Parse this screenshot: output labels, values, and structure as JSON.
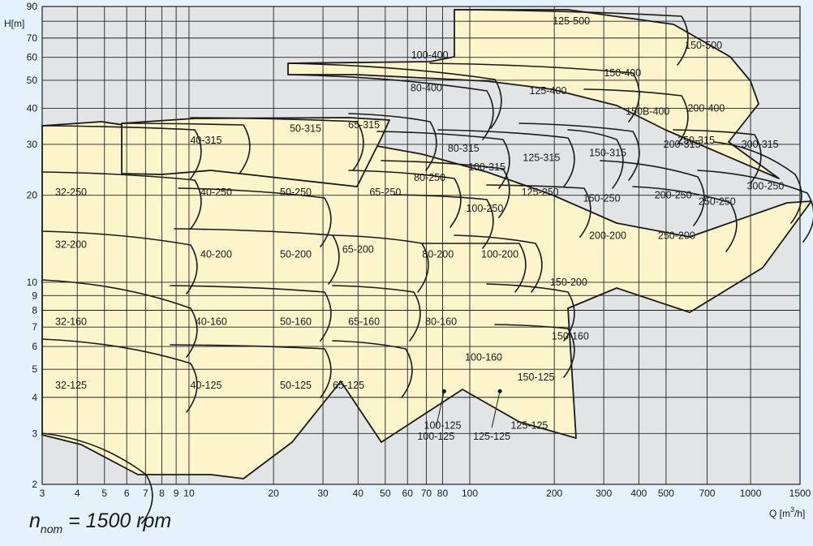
{
  "chart_data": {
    "type": "pump-performance-chart",
    "scale": "log-log",
    "y_axis_label": "H[m]",
    "x_axis_label_text": "Q [m",
    "x_axis_label_sup": "3",
    "x_axis_label_tail": "/h]",
    "y_ticks": [
      2,
      3,
      4,
      5,
      6,
      7,
      8,
      9,
      10,
      20,
      30,
      40,
      50,
      60,
      70,
      90
    ],
    "x_ticks": [
      3,
      4,
      5,
      6,
      7,
      8,
      9,
      10,
      20,
      30,
      40,
      50,
      60,
      70,
      80,
      100,
      200,
      300,
      400,
      500,
      700,
      1000,
      1500
    ],
    "xlim": [
      3,
      1500
    ],
    "ylim": [
      2,
      90
    ],
    "grid": true,
    "pumps": [
      {
        "label": "32-125",
        "q": 3.8,
        "h": 4.4
      },
      {
        "label": "32-160",
        "q": 3.8,
        "h": 7.3
      },
      {
        "label": "32-200",
        "q": 3.8,
        "h": 13.5
      },
      {
        "label": "32-250",
        "q": 3.8,
        "h": 20.5
      },
      {
        "label": "40-125",
        "q": 11.5,
        "h": 4.4
      },
      {
        "label": "40-160",
        "q": 12,
        "h": 7.3
      },
      {
        "label": "40-200",
        "q": 12.5,
        "h": 12.5
      },
      {
        "label": "40-250",
        "q": 12.5,
        "h": 20.5
      },
      {
        "label": "40-315",
        "q": 11.5,
        "h": 31
      },
      {
        "label": "50-125",
        "q": 24,
        "h": 4.4
      },
      {
        "label": "50-160",
        "q": 24,
        "h": 7.3
      },
      {
        "label": "50-200",
        "q": 24,
        "h": 12.5
      },
      {
        "label": "50-250",
        "q": 24,
        "h": 20.5
      },
      {
        "label": "50-315",
        "q": 26,
        "h": 34
      },
      {
        "label": "65-125",
        "q": 37,
        "h": 4.4
      },
      {
        "label": "65-160",
        "q": 42,
        "h": 7.3
      },
      {
        "label": "65-200",
        "q": 40,
        "h": 13
      },
      {
        "label": "65-250",
        "q": 50,
        "h": 20.5
      },
      {
        "label": "65-315",
        "q": 42,
        "h": 35
      },
      {
        "label": "80-160",
        "q": 79,
        "h": 7.3
      },
      {
        "label": "80-200",
        "q": 77,
        "h": 12.5
      },
      {
        "label": "80-250",
        "q": 72,
        "h": 23
      },
      {
        "label": "80-315",
        "q": 95,
        "h": 29
      },
      {
        "label": "80-400",
        "q": 70,
        "h": 47
      },
      {
        "label": "100-125",
        "q": 80,
        "h": 3.2
      },
      {
        "label": "100-160",
        "q": 112,
        "h": 5.5
      },
      {
        "label": "100-200",
        "q": 128,
        "h": 12.5
      },
      {
        "label": "100-250",
        "q": 113,
        "h": 18
      },
      {
        "label": "100-315",
        "q": 115,
        "h": 25
      },
      {
        "label": "100-400",
        "q": 72,
        "h": 61
      },
      {
        "label": "125-125",
        "q": 163,
        "h": 3.2
      },
      {
        "label": "125-250",
        "q": 178,
        "h": 20.5
      },
      {
        "label": "125-315",
        "q": 180,
        "h": 27
      },
      {
        "label": "125-400",
        "q": 190,
        "h": 46
      },
      {
        "label": "125-500",
        "q": 230,
        "h": 80
      },
      {
        "label": "150-125",
        "q": 172,
        "h": 4.7
      },
      {
        "label": "150-160",
        "q": 228,
        "h": 6.5
      },
      {
        "label": "150-200",
        "q": 225,
        "h": 10
      },
      {
        "label": "150-250",
        "q": 295,
        "h": 19.5
      },
      {
        "label": "150-315",
        "q": 310,
        "h": 28
      },
      {
        "label": "150-400",
        "q": 350,
        "h": 53
      },
      {
        "label": "150-500",
        "q": 680,
        "h": 66
      },
      {
        "label": "150B-400",
        "q": 430,
        "h": 39
      },
      {
        "label": "200-200",
        "q": 310,
        "h": 14.5
      },
      {
        "label": "200-250",
        "q": 530,
        "h": 20
      },
      {
        "label": "200-315",
        "q": 570,
        "h": 30
      },
      {
        "label": "200-400",
        "q": 695,
        "h": 40
      },
      {
        "label": "250-200",
        "q": 545,
        "h": 14.5
      },
      {
        "label": "250-250",
        "q": 760,
        "h": 19
      },
      {
        "label": "250-315",
        "q": 640,
        "h": 31
      },
      {
        "label": "300-250",
        "q": 1130,
        "h": 21.5
      },
      {
        "label": "300-315",
        "q": 1080,
        "h": 30
      }
    ],
    "callouts": [
      {
        "label": "100-125",
        "x": 81,
        "y": 4.2
      },
      {
        "label": "125-125",
        "x": 128,
        "y": 4.2
      }
    ]
  },
  "speed": {
    "main": "n",
    "sub": "nom",
    "rest": " = 1500 rpm"
  }
}
